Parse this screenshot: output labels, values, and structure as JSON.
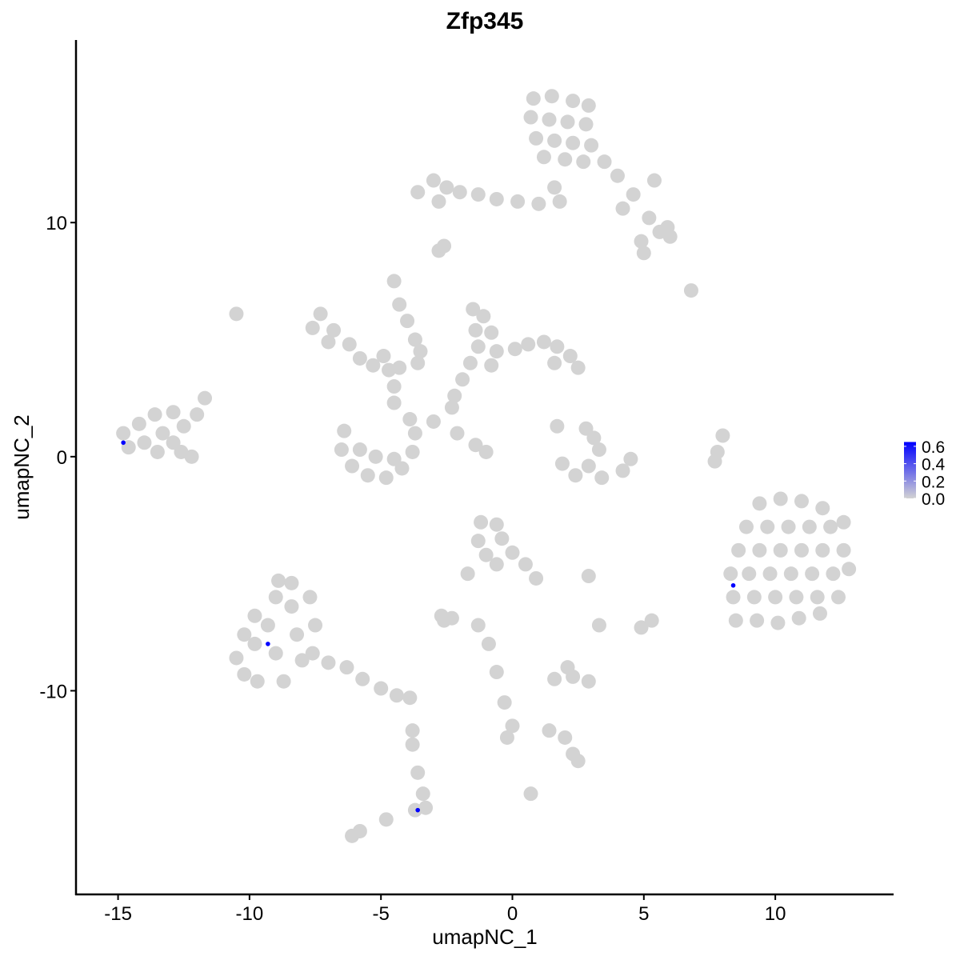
{
  "chart_data": {
    "type": "scatter",
    "title": "Zfp345",
    "xlabel": "umapNC_1",
    "ylabel": "umapNC_2",
    "xlim": [
      -16.6,
      14.5
    ],
    "ylim": [
      -18.7,
      17.8
    ],
    "xticks": [
      -15,
      -10,
      -5,
      0,
      5,
      10
    ],
    "xtick_labels": [
      "-15",
      "-10",
      "-5",
      "0",
      "5",
      "10"
    ],
    "yticks": [
      -10,
      0,
      10
    ],
    "ytick_labels": [
      "-10",
      "0",
      "10"
    ],
    "grid": false,
    "legend": {
      "placement": "right",
      "type": "colorbar",
      "ticks": [
        0.0,
        0.2,
        0.4,
        0.6
      ],
      "tick_labels": [
        "0.0",
        "0.2",
        "0.4",
        "0.6"
      ],
      "range": [
        0,
        0.65
      ],
      "low_color": "#d3d3d3",
      "high_color": "#0000ff"
    },
    "background_points_value": 0,
    "background_points": [
      [
        0.8,
        15.3
      ],
      [
        1.5,
        15.4
      ],
      [
        2.3,
        15.2
      ],
      [
        2.9,
        15.0
      ],
      [
        0.7,
        14.5
      ],
      [
        1.4,
        14.4
      ],
      [
        2.1,
        14.3
      ],
      [
        2.8,
        14.2
      ],
      [
        0.9,
        13.6
      ],
      [
        1.6,
        13.5
      ],
      [
        2.3,
        13.4
      ],
      [
        3.0,
        13.3
      ],
      [
        1.2,
        12.8
      ],
      [
        2.0,
        12.7
      ],
      [
        2.7,
        12.6
      ],
      [
        3.5,
        12.6
      ],
      [
        4.0,
        12.0
      ],
      [
        4.6,
        11.2
      ],
      [
        5.4,
        11.8
      ],
      [
        4.2,
        10.6
      ],
      [
        5.2,
        10.2
      ],
      [
        5.9,
        9.8
      ],
      [
        6.0,
        9.4
      ],
      [
        4.9,
        9.2
      ],
      [
        5.0,
        8.7
      ],
      [
        5.6,
        9.6
      ],
      [
        -3.6,
        11.3
      ],
      [
        -3.0,
        11.8
      ],
      [
        -2.5,
        11.5
      ],
      [
        -2.8,
        10.9
      ],
      [
        -2.0,
        11.3
      ],
      [
        -1.3,
        11.2
      ],
      [
        -0.6,
        11.0
      ],
      [
        0.2,
        10.9
      ],
      [
        1.0,
        10.8
      ],
      [
        1.8,
        10.9
      ],
      [
        1.6,
        11.5
      ],
      [
        -2.8,
        8.8
      ],
      [
        -2.6,
        9.0
      ],
      [
        -7.3,
        6.1
      ],
      [
        -7.6,
        5.5
      ],
      [
        -6.8,
        5.4
      ],
      [
        -7.0,
        4.9
      ],
      [
        -6.2,
        4.8
      ],
      [
        -5.8,
        4.2
      ],
      [
        -5.3,
        3.9
      ],
      [
        -4.7,
        3.7
      ],
      [
        -4.3,
        3.8
      ],
      [
        -4.9,
        4.3
      ],
      [
        -4.5,
        7.5
      ],
      [
        -4.3,
        6.5
      ],
      [
        -4.0,
        5.8
      ],
      [
        -3.7,
        5.0
      ],
      [
        -3.5,
        4.5
      ],
      [
        -3.6,
        4.0
      ],
      [
        -4.5,
        3.0
      ],
      [
        -4.5,
        2.3
      ],
      [
        -6.4,
        1.1
      ],
      [
        -6.5,
        0.3
      ],
      [
        -6.1,
        -0.4
      ],
      [
        -5.5,
        -0.8
      ],
      [
        -4.8,
        -0.9
      ],
      [
        -4.2,
        -0.5
      ],
      [
        -3.8,
        0.2
      ],
      [
        -3.7,
        1.0
      ],
      [
        -3.9,
        1.6
      ],
      [
        -5.2,
        0.0
      ],
      [
        -4.5,
        -0.1
      ],
      [
        -5.8,
        0.3
      ],
      [
        -1.5,
        6.3
      ],
      [
        -1.1,
        6.0
      ],
      [
        -1.4,
        5.4
      ],
      [
        -0.8,
        5.3
      ],
      [
        -1.3,
        4.7
      ],
      [
        -0.6,
        4.5
      ],
      [
        -1.6,
        4.0
      ],
      [
        -0.8,
        3.9
      ],
      [
        0.1,
        4.6
      ],
      [
        0.6,
        4.8
      ],
      [
        1.2,
        4.9
      ],
      [
        1.7,
        4.7
      ],
      [
        2.2,
        4.3
      ],
      [
        2.5,
        3.8
      ],
      [
        1.6,
        4.0
      ],
      [
        -1.9,
        3.3
      ],
      [
        -2.2,
        2.6
      ],
      [
        -2.3,
        2.1
      ],
      [
        -3.0,
        1.5
      ],
      [
        -2.1,
        1.0
      ],
      [
        -1.4,
        0.5
      ],
      [
        -1.0,
        0.2
      ],
      [
        -14.8,
        1.0
      ],
      [
        -14.6,
        0.4
      ],
      [
        -14.2,
        1.4
      ],
      [
        -14.0,
        0.6
      ],
      [
        -13.6,
        1.8
      ],
      [
        -13.3,
        1.0
      ],
      [
        -12.9,
        1.9
      ],
      [
        -12.9,
        0.6
      ],
      [
        -12.5,
        1.3
      ],
      [
        -12.6,
        0.2
      ],
      [
        -12.2,
        0.0
      ],
      [
        -11.7,
        2.5
      ],
      [
        -12.0,
        1.8
      ],
      [
        -13.5,
        0.2
      ],
      [
        -10.5,
        6.1
      ],
      [
        1.7,
        1.3
      ],
      [
        2.8,
        1.2
      ],
      [
        3.1,
        0.8
      ],
      [
        3.3,
        0.3
      ],
      [
        2.9,
        -0.4
      ],
      [
        2.4,
        -0.8
      ],
      [
        3.4,
        -0.9
      ],
      [
        4.2,
        -0.6
      ],
      [
        4.5,
        -0.1
      ],
      [
        1.9,
        -0.3
      ],
      [
        8.0,
        0.9
      ],
      [
        7.8,
        0.2
      ],
      [
        7.7,
        -0.2
      ],
      [
        9.4,
        -2.0
      ],
      [
        10.2,
        -1.8
      ],
      [
        11.0,
        -1.9
      ],
      [
        11.8,
        -2.2
      ],
      [
        8.9,
        -3.0
      ],
      [
        9.7,
        -3.0
      ],
      [
        10.5,
        -3.0
      ],
      [
        11.3,
        -3.0
      ],
      [
        12.1,
        -3.0
      ],
      [
        12.6,
        -2.8
      ],
      [
        8.6,
        -4.0
      ],
      [
        9.4,
        -4.0
      ],
      [
        10.2,
        -4.0
      ],
      [
        11.0,
        -4.0
      ],
      [
        11.8,
        -4.0
      ],
      [
        12.6,
        -4.0
      ],
      [
        8.3,
        -5.0
      ],
      [
        9.0,
        -5.0
      ],
      [
        9.8,
        -5.0
      ],
      [
        10.6,
        -5.0
      ],
      [
        11.4,
        -5.0
      ],
      [
        12.2,
        -5.0
      ],
      [
        12.8,
        -4.8
      ],
      [
        8.4,
        -6.0
      ],
      [
        9.2,
        -6.0
      ],
      [
        10.0,
        -6.0
      ],
      [
        10.8,
        -6.0
      ],
      [
        11.6,
        -6.0
      ],
      [
        12.4,
        -6.0
      ],
      [
        8.5,
        -7.0
      ],
      [
        9.3,
        -7.0
      ],
      [
        10.1,
        -7.1
      ],
      [
        10.9,
        -6.9
      ],
      [
        11.7,
        -6.7
      ],
      [
        -10.5,
        -8.6
      ],
      [
        -10.2,
        -9.3
      ],
      [
        -9.8,
        -8.0
      ],
      [
        -9.7,
        -9.6
      ],
      [
        -9.3,
        -7.2
      ],
      [
        -9.0,
        -8.4
      ],
      [
        -8.7,
        -9.6
      ],
      [
        -9.0,
        -6.0
      ],
      [
        -8.9,
        -5.3
      ],
      [
        -8.4,
        -6.4
      ],
      [
        -8.2,
        -7.6
      ],
      [
        -8.0,
        -8.7
      ],
      [
        -8.4,
        -5.4
      ],
      [
        -7.7,
        -6.0
      ],
      [
        -7.5,
        -7.2
      ],
      [
        -7.6,
        -8.4
      ],
      [
        -9.8,
        -6.8
      ],
      [
        -10.2,
        -7.6
      ],
      [
        -7.0,
        -8.8
      ],
      [
        -6.3,
        -9.0
      ],
      [
        -5.7,
        -9.5
      ],
      [
        -5.0,
        -9.9
      ],
      [
        -4.4,
        -10.2
      ],
      [
        -3.9,
        -10.3
      ],
      [
        -1.2,
        -2.8
      ],
      [
        -0.6,
        -2.9
      ],
      [
        -1.3,
        -3.6
      ],
      [
        -0.4,
        -3.5
      ],
      [
        -1.0,
        -4.2
      ],
      [
        0.0,
        -4.1
      ],
      [
        0.5,
        -4.6
      ],
      [
        0.9,
        -5.2
      ],
      [
        -0.6,
        -4.6
      ],
      [
        -1.7,
        -5.0
      ],
      [
        -2.7,
        -6.8
      ],
      [
        -2.3,
        -6.9
      ],
      [
        -2.6,
        -7.0
      ],
      [
        -1.3,
        -7.2
      ],
      [
        2.9,
        -5.1
      ],
      [
        4.9,
        -7.3
      ],
      [
        5.3,
        -7.0
      ],
      [
        3.3,
        -7.2
      ],
      [
        1.6,
        -9.5
      ],
      [
        2.3,
        -9.4
      ],
      [
        2.9,
        -9.6
      ],
      [
        2.1,
        -9.0
      ],
      [
        -0.9,
        -8.0
      ],
      [
        -0.6,
        -9.2
      ],
      [
        -0.3,
        -10.5
      ],
      [
        0.0,
        -11.5
      ],
      [
        -0.2,
        -12.0
      ],
      [
        1.4,
        -11.7
      ],
      [
        2.0,
        -12.0
      ],
      [
        2.3,
        -12.7
      ],
      [
        2.5,
        -13.0
      ],
      [
        0.7,
        -14.4
      ],
      [
        -3.8,
        -11.7
      ],
      [
        -3.8,
        -12.3
      ],
      [
        -3.6,
        -13.5
      ],
      [
        -3.4,
        -14.4
      ],
      [
        -3.3,
        -15.0
      ],
      [
        -3.7,
        -15.1
      ],
      [
        -6.1,
        -16.2
      ],
      [
        -5.8,
        -16.0
      ],
      [
        -4.8,
        -15.5
      ],
      [
        6.8,
        7.1
      ]
    ],
    "expressing_points": [
      {
        "x": -14.8,
        "y": 0.6,
        "value": 0.65
      },
      {
        "x": -9.3,
        "y": -8.0,
        "value": 0.65
      },
      {
        "x": -3.6,
        "y": -15.1,
        "value": 0.65
      },
      {
        "x": 8.4,
        "y": -5.5,
        "value": 0.65
      }
    ]
  }
}
